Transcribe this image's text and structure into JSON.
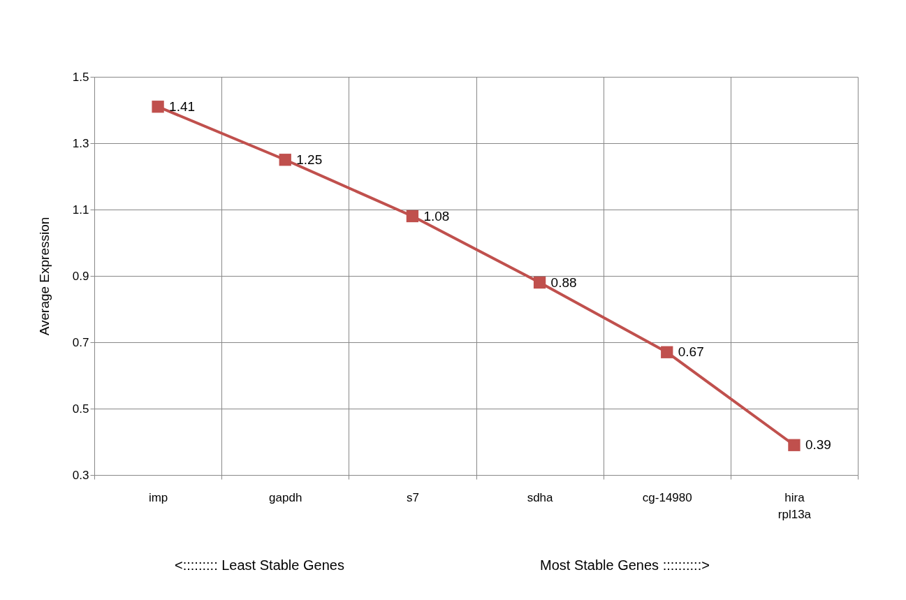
{
  "chart_data": {
    "type": "line",
    "ylabel": "Average Expression",
    "categories": [
      "imp",
      "gapdh",
      "s7",
      "sdha",
      "cg-14980",
      "hira rpl13a"
    ],
    "series": [
      {
        "color": "#c0504d",
        "values": [
          1.41,
          1.25,
          1.08,
          0.88,
          0.67,
          0.39
        ]
      }
    ],
    "ylim": [
      0.3,
      1.5
    ],
    "yticks": [
      0.3,
      0.5,
      0.7,
      0.9,
      1.1,
      1.3,
      1.5
    ],
    "grid": true,
    "marker": "square",
    "data_labels": true,
    "annotations": [
      "<::::::::: Least Stable Genes",
      "Most Stable Genes ::::::::::>"
    ]
  }
}
